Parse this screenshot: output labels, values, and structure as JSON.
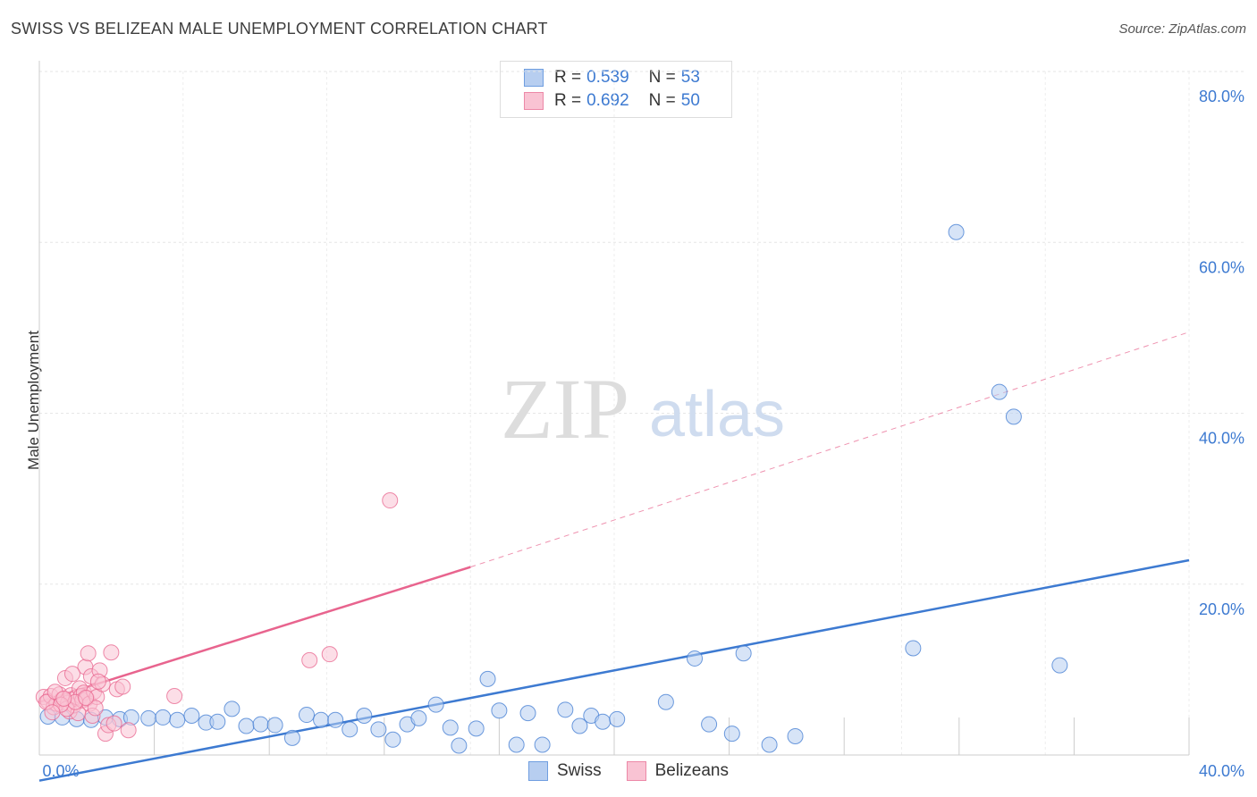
{
  "header": {
    "title": "SWISS VS BELIZEAN MALE UNEMPLOYMENT CORRELATION CHART",
    "source": "Source: ZipAtlas.com"
  },
  "watermark": {
    "zip": "ZIP",
    "atlas": "atlas"
  },
  "legend": {
    "r_label": "R =",
    "n_label": "N =",
    "entries": [
      {
        "name": "Swiss",
        "r": "0.539",
        "n": "53",
        "fill": "#b7cef0",
        "stroke": "#6f9ee0"
      },
      {
        "name": "Belizeans",
        "r": "0.692",
        "n": "50",
        "fill": "#f9c3d3",
        "stroke": "#ec88a7"
      }
    ]
  },
  "chart_data": {
    "type": "scatter",
    "title": "SWISS VS BELIZEAN MALE UNEMPLOYMENT CORRELATION CHART",
    "xlabel": "",
    "ylabel": "Male Unemployment",
    "xlim": [
      0,
      40
    ],
    "ylim": [
      0,
      80
    ],
    "x_tick_labels": [
      "0.0%",
      "40.0%"
    ],
    "y_ticks": [
      20,
      40,
      60,
      80
    ],
    "y_tick_labels": [
      "20.0%",
      "40.0%",
      "60.0%",
      "80.0%"
    ],
    "grid": true,
    "series": [
      {
        "name": "Swiss",
        "color": "#3d7ad1",
        "fill": "#b7cef0",
        "points": [
          [
            0.3,
            4.5
          ],
          [
            0.8,
            4.4
          ],
          [
            1.3,
            4.2
          ],
          [
            1.8,
            4.1
          ],
          [
            2.3,
            4.4
          ],
          [
            2.8,
            4.2
          ],
          [
            3.2,
            4.4
          ],
          [
            3.8,
            4.3
          ],
          [
            4.3,
            4.4
          ],
          [
            4.8,
            4.1
          ],
          [
            5.3,
            4.6
          ],
          [
            5.8,
            3.8
          ],
          [
            6.2,
            3.9
          ],
          [
            6.7,
            5.4
          ],
          [
            7.2,
            3.4
          ],
          [
            7.7,
            3.6
          ],
          [
            8.2,
            3.5
          ],
          [
            8.8,
            2.0
          ],
          [
            9.3,
            4.7
          ],
          [
            9.8,
            4.1
          ],
          [
            10.3,
            4.1
          ],
          [
            10.8,
            3.0
          ],
          [
            11.3,
            4.6
          ],
          [
            11.8,
            3.0
          ],
          [
            12.3,
            1.8
          ],
          [
            12.8,
            3.6
          ],
          [
            13.2,
            4.3
          ],
          [
            13.8,
            5.9
          ],
          [
            14.3,
            3.2
          ],
          [
            14.6,
            1.1
          ],
          [
            15.2,
            3.1
          ],
          [
            15.6,
            8.9
          ],
          [
            16.0,
            5.2
          ],
          [
            16.6,
            1.2
          ],
          [
            17.0,
            4.9
          ],
          [
            17.5,
            1.2
          ],
          [
            18.3,
            5.3
          ],
          [
            18.8,
            3.4
          ],
          [
            19.2,
            4.6
          ],
          [
            19.6,
            3.9
          ],
          [
            20.1,
            4.2
          ],
          [
            21.8,
            6.2
          ],
          [
            22.8,
            11.3
          ],
          [
            23.3,
            3.6
          ],
          [
            24.1,
            2.5
          ],
          [
            24.5,
            11.9
          ],
          [
            25.4,
            1.2
          ],
          [
            26.3,
            2.2
          ],
          [
            30.4,
            12.5
          ],
          [
            31.9,
            61.2
          ],
          [
            33.4,
            42.5
          ],
          [
            33.9,
            39.6
          ],
          [
            35.5,
            10.5
          ]
        ],
        "trend": {
          "x": [
            0,
            40
          ],
          "y": [
            -3.0,
            22.8
          ],
          "style": "solid"
        }
      },
      {
        "name": "Belizeans",
        "color": "#e8648e",
        "fill": "#f9c3d3",
        "points": [
          [
            0.15,
            6.8
          ],
          [
            0.3,
            6.3
          ],
          [
            0.4,
            6.9
          ],
          [
            0.5,
            5.6
          ],
          [
            0.6,
            6.0
          ],
          [
            0.7,
            7.1
          ],
          [
            0.8,
            6.5
          ],
          [
            0.9,
            9.0
          ],
          [
            1.0,
            6.1
          ],
          [
            1.05,
            5.1
          ],
          [
            1.1,
            7.0
          ],
          [
            1.2,
            5.8
          ],
          [
            1.3,
            6.8
          ],
          [
            1.35,
            4.9
          ],
          [
            1.4,
            7.8
          ],
          [
            1.45,
            6.9
          ],
          [
            1.5,
            6.4
          ],
          [
            1.55,
            7.3
          ],
          [
            1.6,
            10.3
          ],
          [
            1.65,
            6.6
          ],
          [
            1.7,
            11.9
          ],
          [
            1.75,
            6.0
          ],
          [
            1.8,
            9.2
          ],
          [
            1.85,
            4.6
          ],
          [
            1.9,
            7.4
          ],
          [
            2.0,
            6.8
          ],
          [
            2.1,
            9.9
          ],
          [
            2.2,
            8.3
          ],
          [
            2.3,
            2.5
          ],
          [
            2.4,
            3.5
          ],
          [
            2.5,
            12.0
          ],
          [
            2.7,
            7.7
          ],
          [
            3.1,
            2.9
          ],
          [
            4.7,
            6.9
          ],
          [
            9.4,
            11.1
          ],
          [
            10.1,
            11.8
          ],
          [
            12.2,
            29.8
          ],
          [
            0.25,
            6.2
          ],
          [
            0.55,
            7.4
          ],
          [
            0.95,
            5.4
          ],
          [
            1.25,
            6.2
          ],
          [
            1.15,
            9.5
          ],
          [
            0.75,
            5.9
          ],
          [
            1.95,
            5.5
          ],
          [
            2.05,
            8.6
          ],
          [
            2.6,
            3.7
          ],
          [
            0.45,
            5.0
          ],
          [
            1.62,
            6.7
          ],
          [
            2.9,
            8.0
          ],
          [
            0.85,
            6.6
          ]
        ],
        "trend": {
          "x": [
            0,
            15
          ],
          "y": [
            6.2,
            22.0
          ],
          "style": "solid",
          "extension": {
            "x": [
              15,
              40
            ],
            "y": [
              22.0,
              49.5
            ],
            "style": "dashed"
          }
        }
      }
    ]
  }
}
